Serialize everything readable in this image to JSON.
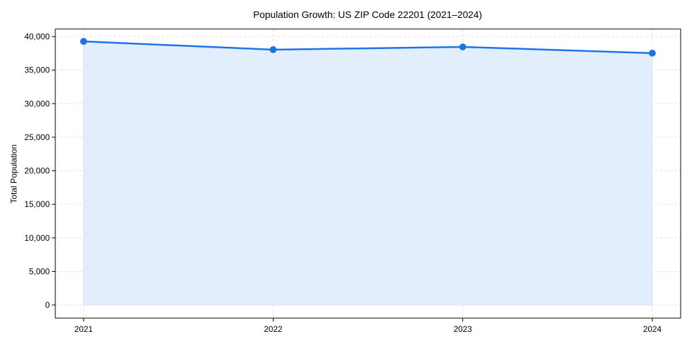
{
  "chart_data": {
    "type": "area",
    "title": "Population Growth: US ZIP Code 22201 (2021–2024)",
    "xlabel": "",
    "ylabel": "Total Population",
    "categories": [
      "2021",
      "2022",
      "2023",
      "2024"
    ],
    "series": [
      {
        "name": "Total Population",
        "values": [
          39280,
          38050,
          38460,
          37530
        ],
        "color": "#1a73e8",
        "fill": "#e3eefd"
      }
    ],
    "ylim": [
      -2000,
      42000
    ],
    "yticks": [
      0,
      5000,
      10000,
      15000,
      20000,
      25000,
      30000,
      35000,
      40000
    ],
    "ytick_labels": [
      "0",
      "5,000",
      "10,000",
      "15,000",
      "20,000",
      "25,000",
      "30,000",
      "35,000",
      "40,000"
    ],
    "grid": true,
    "legend": "none"
  }
}
